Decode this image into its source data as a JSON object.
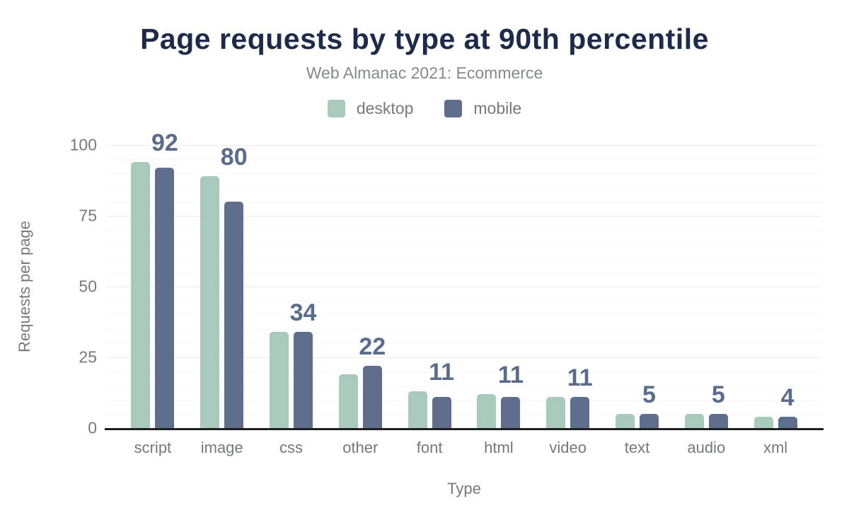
{
  "chart_data": {
    "type": "bar",
    "title": "Page requests by type at 90th percentile",
    "subtitle": "Web Almanac 2021: Ecommerce",
    "xlabel": "Type",
    "ylabel": "Requests per page",
    "ylim": [
      0,
      100
    ],
    "yticks": [
      0,
      25,
      50,
      75,
      100
    ],
    "minor_grid_step": 5,
    "major_grid_step": 25,
    "grid": true,
    "legend_position": "top",
    "categories": [
      "script",
      "image",
      "css",
      "other",
      "font",
      "html",
      "video",
      "text",
      "audio",
      "xml"
    ],
    "series": [
      {
        "name": "desktop",
        "color": "#a8cabb",
        "values": [
          94,
          89,
          34,
          19,
          13,
          12,
          11,
          5,
          5,
          4
        ]
      },
      {
        "name": "mobile",
        "color": "#5f6e8c",
        "values": [
          92,
          80,
          34,
          22,
          11,
          11,
          11,
          5,
          5,
          4
        ]
      }
    ],
    "bar_labels": {
      "series": "mobile",
      "values": [
        "92",
        "80",
        "34",
        "22",
        "11",
        "11",
        "11",
        "5",
        "5",
        "4"
      ],
      "color": "#5a6b8c"
    }
  },
  "colors": {
    "background": "#ffffff",
    "title": "#1e2a4a",
    "subtitle": "#85898e",
    "axis_text": "#75787e",
    "axis_line": "#1f1f1f",
    "grid_minor": "#f7f7f7",
    "grid_major": "#ececec"
  }
}
